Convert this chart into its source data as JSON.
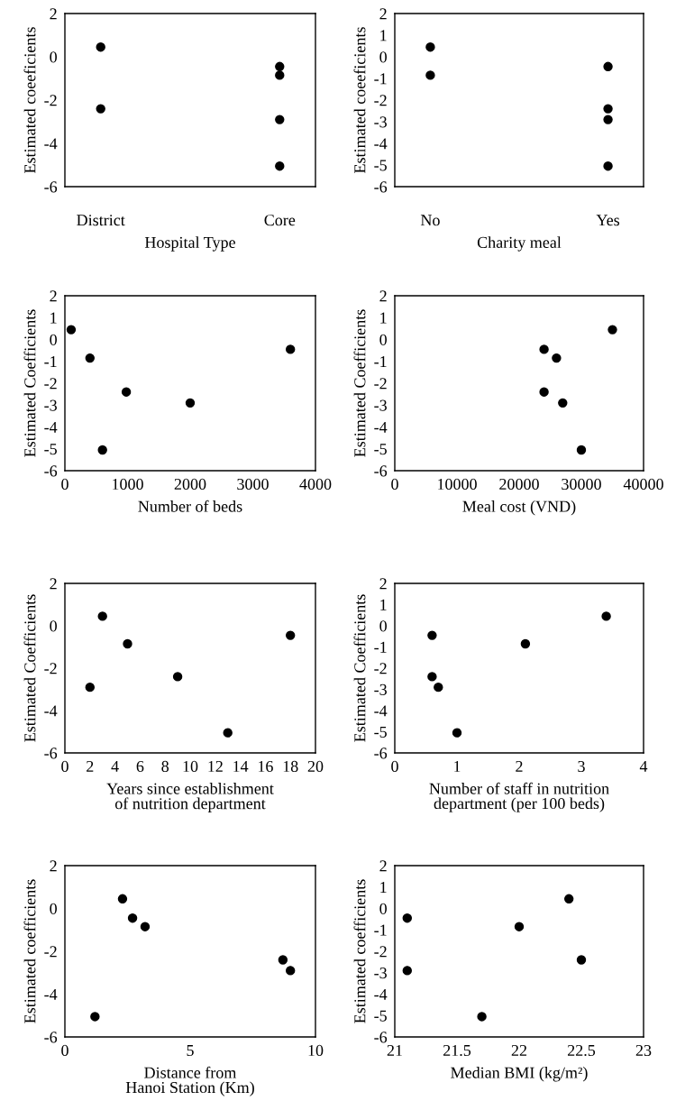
{
  "chart_data": [
    {
      "type": "scatter",
      "xlabel": "Hospital Type",
      "ylabel": "Estimated coeeficients",
      "categories": [
        "District",
        "Core"
      ],
      "ylim": [
        -6,
        2
      ],
      "yticks": [
        -6,
        -4,
        -2,
        0,
        2
      ],
      "marker": "circle",
      "series": [
        {
          "color": "#000000",
          "x": [
            "District",
            "District",
            "Core",
            "Core",
            "Core",
            "Core"
          ],
          "values": [
            0.45,
            -2.4,
            -0.45,
            -0.85,
            -2.9,
            -5.05
          ]
        }
      ]
    },
    {
      "type": "scatter",
      "xlabel": "Charity meal",
      "ylabel": "Estimated coeeficients",
      "categories": [
        "No",
        "Yes"
      ],
      "ylim": [
        -6,
        2
      ],
      "yticks": [
        -6,
        -5,
        -4,
        -3,
        -2,
        -1,
        0,
        1,
        2
      ],
      "marker": "circle",
      "series": [
        {
          "color": "#000000",
          "x": [
            "No",
            "No",
            "Yes",
            "Yes",
            "Yes",
            "Yes"
          ],
          "values": [
            0.45,
            -0.85,
            -0.45,
            -2.4,
            -2.9,
            -5.05
          ]
        }
      ]
    },
    {
      "type": "scatter",
      "xlabel": "Number of beds",
      "ylabel": "Estimated Coefficients",
      "xlim": [
        0,
        4000
      ],
      "xticks": [
        0,
        1000,
        2000,
        3000,
        4000
      ],
      "ylim": [
        -6,
        2
      ],
      "yticks": [
        -6,
        -5,
        -4,
        -3,
        -2,
        -1,
        0,
        1,
        2
      ],
      "marker": "circle",
      "series": [
        {
          "color": "#000000",
          "x": [
            100,
            400,
            980,
            600,
            2000,
            3600
          ],
          "values": [
            0.45,
            -0.85,
            -2.4,
            -5.05,
            -2.9,
            -0.45
          ]
        }
      ]
    },
    {
      "type": "scatter",
      "xlabel": "Meal cost (VND)",
      "ylabel": "Estimated Coefficients",
      "xlim": [
        0,
        40000
      ],
      "xticks": [
        0,
        10000,
        20000,
        30000,
        40000
      ],
      "ylim": [
        -6,
        2
      ],
      "yticks": [
        -6,
        -5,
        -4,
        -3,
        -2,
        -1,
        0,
        1,
        2
      ],
      "marker": "circle",
      "series": [
        {
          "color": "#000000",
          "x": [
            35000,
            24000,
            26000,
            24000,
            27000,
            30000
          ],
          "values": [
            0.45,
            -0.45,
            -0.85,
            -2.4,
            -2.9,
            -5.05
          ]
        }
      ]
    },
    {
      "type": "scatter",
      "xlabel": "Years since establishment\nof nutrition department",
      "ylabel": "Estimated Coefficients",
      "xlim": [
        0,
        20
      ],
      "xticks": [
        0,
        2,
        4,
        6,
        8,
        10,
        12,
        14,
        16,
        18,
        20
      ],
      "ylim": [
        -6,
        2
      ],
      "yticks": [
        -6,
        -4,
        -2,
        0,
        2
      ],
      "marker": "circle",
      "series": [
        {
          "color": "#000000",
          "x": [
            3,
            5,
            2,
            9,
            13,
            18
          ],
          "values": [
            0.45,
            -0.85,
            -2.9,
            -2.4,
            -5.05,
            -0.45
          ]
        }
      ]
    },
    {
      "type": "scatter",
      "xlabel": "Number of staff in nutrition\ndepartment (per 100 beds)",
      "ylabel": "Estimated Coefficients",
      "xlim": [
        0,
        4
      ],
      "xticks": [
        0,
        1,
        2,
        3,
        4
      ],
      "ylim": [
        -6,
        2
      ],
      "yticks": [
        -6,
        -5,
        -4,
        -3,
        -2,
        -1,
        0,
        1,
        2
      ],
      "marker": "circle",
      "series": [
        {
          "color": "#000000",
          "x": [
            0.6,
            0.6,
            0.7,
            1.0,
            2.1,
            3.4
          ],
          "values": [
            -0.45,
            -2.4,
            -2.9,
            -5.05,
            -0.85,
            0.45
          ]
        }
      ]
    },
    {
      "type": "scatter",
      "xlabel": "Distance from\nHanoi Station (Km)",
      "ylabel": "Estimated coefficients",
      "xlim": [
        0,
        10
      ],
      "xticks": [
        0,
        5,
        10
      ],
      "ylim": [
        -6,
        2
      ],
      "yticks": [
        -6,
        -4,
        -2,
        0,
        2
      ],
      "marker": "circle",
      "series": [
        {
          "color": "#000000",
          "x": [
            2.3,
            2.7,
            3.2,
            8.7,
            9.0,
            1.2
          ],
          "values": [
            0.45,
            -0.45,
            -0.85,
            -2.4,
            -2.9,
            -5.05
          ]
        }
      ]
    },
    {
      "type": "scatter",
      "xlabel": "Median BMI (kg/m²)",
      "ylabel": "Estimated coefficients",
      "xlim": [
        21,
        23
      ],
      "xticks": [
        21,
        21.5,
        22,
        22.5,
        23
      ],
      "ylim": [
        -6,
        2
      ],
      "yticks": [
        -6,
        -5,
        -4,
        -3,
        -2,
        -1,
        0,
        1,
        2
      ],
      "marker": "circle",
      "series": [
        {
          "color": "#000000",
          "x": [
            21.1,
            21.1,
            21.7,
            22.0,
            22.4,
            22.5
          ],
          "values": [
            -0.45,
            -2.9,
            -5.05,
            -0.85,
            0.45,
            -2.4
          ]
        }
      ]
    }
  ]
}
